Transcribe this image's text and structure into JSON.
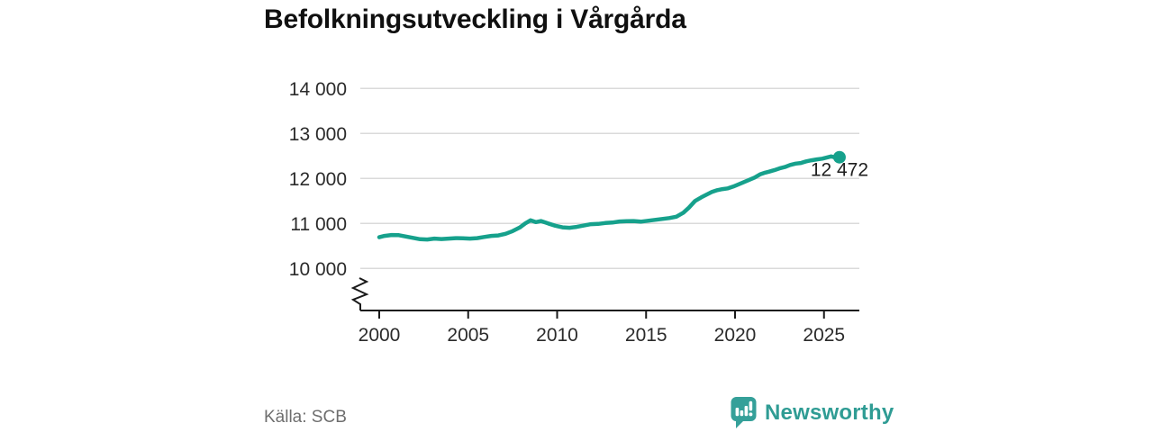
{
  "title": "Befolkningsutveckling i Vårgårda",
  "source": {
    "label": "Källa: SCB"
  },
  "logo": {
    "text": "Newsworthy",
    "icon": "newsworthy-speech-bubble-barchart-icon",
    "color": "#2f9c94"
  },
  "chart_data": {
    "type": "line",
    "title": "Befolkningsutveckling i Vårgårda",
    "xlabel": "",
    "ylabel": "",
    "xlim": [
      1998.9,
      2027.1
    ],
    "ylim": [
      10000,
      14000
    ],
    "axis_break_at_bottom": true,
    "grid": "horizontal",
    "line_color": "#16a18c",
    "grid_color": "#dadada",
    "axis_color": "#1a1a1a",
    "tick_label_color": "#2b2b2b",
    "x_ticks": [
      {
        "value": 2000,
        "label": "2000"
      },
      {
        "value": 2005,
        "label": "2005"
      },
      {
        "value": 2010,
        "label": "2010"
      },
      {
        "value": 2015,
        "label": "2015"
      },
      {
        "value": 2020,
        "label": "2020"
      },
      {
        "value": 2025,
        "label": "2025"
      }
    ],
    "y_ticks": [
      {
        "value": 10000,
        "label": "10 000"
      },
      {
        "value": 11000,
        "label": "11 000"
      },
      {
        "value": 12000,
        "label": "12 000"
      },
      {
        "value": 13000,
        "label": "13 000"
      },
      {
        "value": 14000,
        "label": "14 000"
      }
    ],
    "end_label": "12 472",
    "end_value": 12472,
    "series": [
      {
        "name": "Befolkning i Vårgårda",
        "points": [
          [
            2000.0,
            10695
          ],
          [
            2000.3,
            10725
          ],
          [
            2000.7,
            10745
          ],
          [
            2001.1,
            10740
          ],
          [
            2001.5,
            10710
          ],
          [
            2001.9,
            10680
          ],
          [
            2002.3,
            10650
          ],
          [
            2002.7,
            10645
          ],
          [
            2003.1,
            10665
          ],
          [
            2003.5,
            10655
          ],
          [
            2003.9,
            10665
          ],
          [
            2004.3,
            10675
          ],
          [
            2004.7,
            10670
          ],
          [
            2005.1,
            10665
          ],
          [
            2005.5,
            10675
          ],
          [
            2005.9,
            10700
          ],
          [
            2006.3,
            10725
          ],
          [
            2006.7,
            10735
          ],
          [
            2007.1,
            10770
          ],
          [
            2007.5,
            10830
          ],
          [
            2007.9,
            10910
          ],
          [
            2008.2,
            11000
          ],
          [
            2008.5,
            11070
          ],
          [
            2008.8,
            11030
          ],
          [
            2009.1,
            11055
          ],
          [
            2009.5,
            11000
          ],
          [
            2009.9,
            10950
          ],
          [
            2010.3,
            10915
          ],
          [
            2010.7,
            10905
          ],
          [
            2011.1,
            10925
          ],
          [
            2011.5,
            10955
          ],
          [
            2011.9,
            10985
          ],
          [
            2012.3,
            10990
          ],
          [
            2012.7,
            11010
          ],
          [
            2013.1,
            11020
          ],
          [
            2013.5,
            11045
          ],
          [
            2013.9,
            11050
          ],
          [
            2014.3,
            11055
          ],
          [
            2014.7,
            11040
          ],
          [
            2015.1,
            11060
          ],
          [
            2015.5,
            11080
          ],
          [
            2015.9,
            11100
          ],
          [
            2016.3,
            11120
          ],
          [
            2016.7,
            11150
          ],
          [
            2017.1,
            11240
          ],
          [
            2017.4,
            11350
          ],
          [
            2017.75,
            11500
          ],
          [
            2018.1,
            11580
          ],
          [
            2018.4,
            11640
          ],
          [
            2018.7,
            11700
          ],
          [
            2019.0,
            11740
          ],
          [
            2019.3,
            11765
          ],
          [
            2019.6,
            11780
          ],
          [
            2019.9,
            11820
          ],
          [
            2020.2,
            11870
          ],
          [
            2020.5,
            11920
          ],
          [
            2020.8,
            11970
          ],
          [
            2021.1,
            12020
          ],
          [
            2021.4,
            12090
          ],
          [
            2021.7,
            12130
          ],
          [
            2021.9,
            12150
          ],
          [
            2022.2,
            12185
          ],
          [
            2022.5,
            12225
          ],
          [
            2022.8,
            12255
          ],
          [
            2023.1,
            12300
          ],
          [
            2023.4,
            12330
          ],
          [
            2023.7,
            12345
          ],
          [
            2024.0,
            12380
          ],
          [
            2024.3,
            12405
          ],
          [
            2024.6,
            12425
          ],
          [
            2024.9,
            12440
          ],
          [
            2025.15,
            12465
          ],
          [
            2025.4,
            12490
          ],
          [
            2025.6,
            12470
          ],
          [
            2025.75,
            12455
          ],
          [
            2025.87,
            12472
          ]
        ]
      }
    ]
  }
}
